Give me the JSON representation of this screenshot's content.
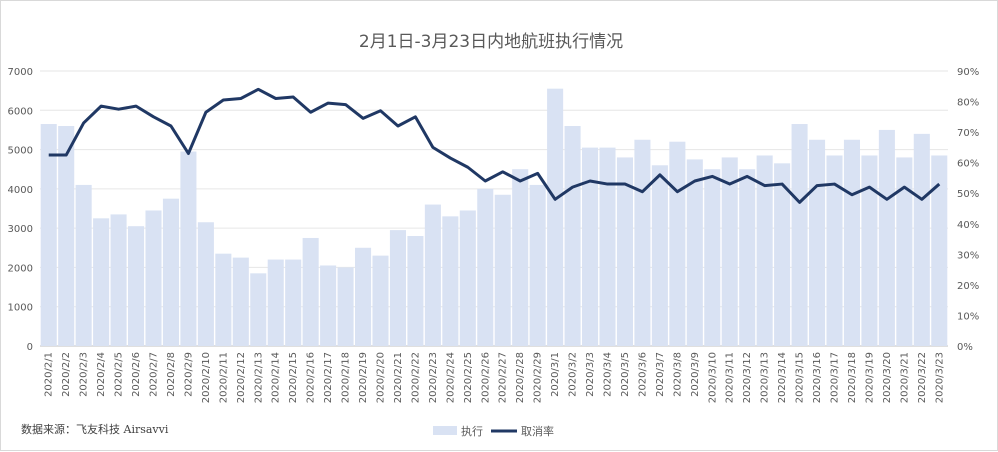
{
  "chart_data": {
    "type": "bar",
    "title": "2月1日-3月23日内地航班执行情况",
    "categories": [
      "2020/2/1",
      "2020/2/2",
      "2020/2/3",
      "2020/2/4",
      "2020/2/5",
      "2020/2/6",
      "2020/2/7",
      "2020/2/8",
      "2020/2/9",
      "2020/2/10",
      "2020/2/11",
      "2020/2/12",
      "2020/2/13",
      "2020/2/14",
      "2020/2/15",
      "2020/2/16",
      "2020/2/17",
      "2020/2/18",
      "2020/2/19",
      "2020/2/20",
      "2020/2/21",
      "2020/2/22",
      "2020/2/23",
      "2020/2/24",
      "2020/2/25",
      "2020/2/26",
      "2020/2/27",
      "2020/2/28",
      "2020/2/29",
      "2020/3/1",
      "2020/3/2",
      "2020/3/3",
      "2020/3/4",
      "2020/3/5",
      "2020/3/6",
      "2020/3/7",
      "2020/3/8",
      "2020/3/9",
      "2020/3/10",
      "2020/3/11",
      "2020/3/12",
      "2020/3/13",
      "2020/3/14",
      "2020/3/15",
      "2020/3/16",
      "2020/3/17",
      "2020/3/18",
      "2020/3/19",
      "2020/3/20",
      "2020/3/21",
      "2020/3/22",
      "2020/3/23"
    ],
    "series": [
      {
        "name": "执行",
        "type": "bar",
        "axis": "left",
        "color": "#d9e2f3",
        "values": [
          5650,
          5600,
          4100,
          3250,
          3350,
          3050,
          3450,
          3750,
          4950,
          3150,
          2350,
          2250,
          1850,
          2200,
          2200,
          2750,
          2050,
          2000,
          2500,
          2300,
          2950,
          2800,
          3600,
          3300,
          3450,
          4000,
          3850,
          4500,
          4100,
          6550,
          5600,
          5050,
          5050,
          4800,
          5250,
          4600,
          5200,
          4750,
          4500,
          4800,
          4500,
          4850,
          4650,
          5650,
          5250,
          4850,
          5250,
          4850,
          5500,
          4800,
          5400,
          4850
        ]
      },
      {
        "name": "取消率",
        "type": "line",
        "axis": "right",
        "color": "#203864",
        "values": [
          0.625,
          0.625,
          0.73,
          0.785,
          0.775,
          0.785,
          0.75,
          0.72,
          0.63,
          0.765,
          0.805,
          0.81,
          0.84,
          0.81,
          0.815,
          0.765,
          0.795,
          0.79,
          0.745,
          0.77,
          0.72,
          0.75,
          0.65,
          0.615,
          0.585,
          0.54,
          0.57,
          0.54,
          0.565,
          0.48,
          0.52,
          0.54,
          0.53,
          0.53,
          0.505,
          0.56,
          0.505,
          0.54,
          0.555,
          0.53,
          0.555,
          0.525,
          0.53,
          0.47,
          0.525,
          0.53,
          0.495,
          0.52,
          0.48,
          0.52,
          0.48,
          0.53
        ]
      }
    ],
    "yleft": {
      "min": 0,
      "max": 7000,
      "ticks": [
        "0",
        "1000",
        "2000",
        "3000",
        "4000",
        "5000",
        "6000",
        "7000"
      ]
    },
    "yright": {
      "min": 0,
      "max": 0.9,
      "ticks": [
        "0%",
        "10%",
        "20%",
        "30%",
        "40%",
        "50%",
        "60%",
        "70%",
        "80%",
        "90%"
      ]
    },
    "grid": true,
    "legend_position": "bottom",
    "source_note": "数据来源：飞友科技 Airsavvi"
  }
}
